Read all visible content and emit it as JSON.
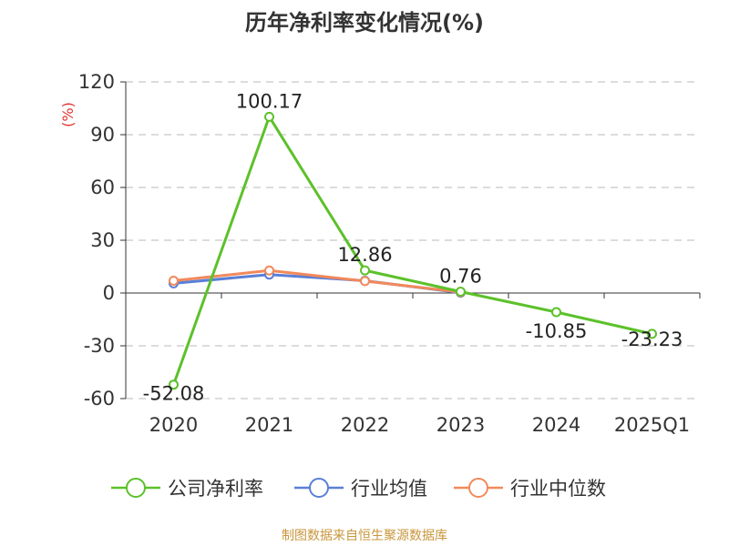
{
  "chart_data": {
    "type": "line",
    "title": "历年净利率变化情况(%)",
    "y_unit": "(%)",
    "categories": [
      "2020",
      "2021",
      "2022",
      "2023",
      "2024",
      "2025Q1"
    ],
    "ylim": [
      -60,
      120
    ],
    "yticks": [
      -60,
      -30,
      0,
      30,
      60,
      90,
      120
    ],
    "grid": true,
    "legend_position": "bottom",
    "series": [
      {
        "name": "公司净利率",
        "color": "#5cc12a",
        "values": [
          -52.08,
          100.17,
          12.86,
          0.76,
          -10.85,
          -23.23
        ],
        "data_labels": [
          "-52.08",
          "100.17",
          "12.86",
          "0.76",
          "-10.85",
          "-23.23"
        ]
      },
      {
        "name": "行业均值",
        "color": "#5a7fd6",
        "values": [
          5.5,
          10.5,
          7.0,
          0.2,
          null,
          null
        ]
      },
      {
        "name": "行业中位数",
        "color": "#f2895b",
        "values": [
          7.0,
          12.8,
          6.8,
          0.5,
          null,
          null
        ]
      }
    ],
    "source": "制图数据来自恒生聚源数据库"
  }
}
